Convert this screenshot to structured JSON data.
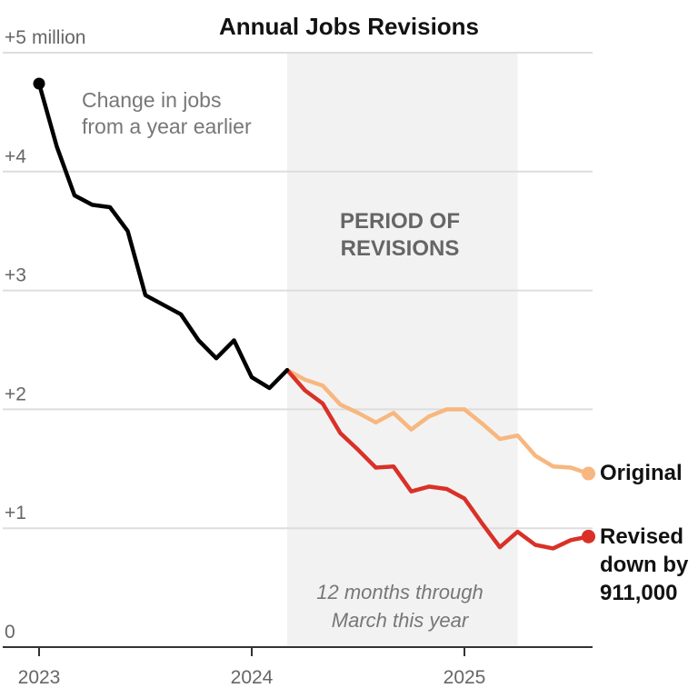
{
  "chart_data": {
    "type": "line",
    "title": "Annual Jobs Revisions",
    "unit_label": "million",
    "ylim": [
      0,
      5
    ],
    "yticks": [
      {
        "value": 0,
        "label": "0"
      },
      {
        "value": 1,
        "label": "+1"
      },
      {
        "value": 2,
        "label": "+2"
      },
      {
        "value": 3,
        "label": "+3"
      },
      {
        "value": 4,
        "label": "+4"
      },
      {
        "value": 5,
        "label": "+5"
      }
    ],
    "xlim": [
      2023.0,
      2025.6
    ],
    "xticks": [
      {
        "value": 2023,
        "label": "2023"
      },
      {
        "value": 2024,
        "label": "2024"
      },
      {
        "value": 2025,
        "label": "2025"
      }
    ],
    "annotation": [
      "Change in jobs",
      "from a year earlier"
    ],
    "shaded_period": {
      "start": 2024.1667,
      "end": 2025.25,
      "label": [
        "PERIOD OF",
        "REVISIONS"
      ],
      "note": [
        "12 months through",
        "March this year"
      ]
    },
    "colors": {
      "history": "#000000",
      "original": "#f7b77f",
      "revised": "#d93127",
      "shade": "#f2f2f2"
    },
    "series": [
      {
        "name": "history",
        "x": [
          2023.0,
          2023.0833,
          2023.1667,
          2023.25,
          2023.3333,
          2023.4167,
          2023.5,
          2023.5833,
          2023.6667,
          2023.75,
          2023.8333,
          2023.9167,
          2024.0,
          2024.0833,
          2024.1667
        ],
        "values": [
          4.74,
          4.21,
          3.8,
          3.72,
          3.7,
          3.5,
          2.96,
          2.88,
          2.8,
          2.58,
          2.43,
          2.58,
          2.27,
          2.18,
          2.33
        ]
      },
      {
        "name": "Original",
        "label": "Original",
        "x": [
          2024.1667,
          2024.25,
          2024.3333,
          2024.4167,
          2024.5,
          2024.5833,
          2024.6667,
          2024.75,
          2024.8333,
          2024.9167,
          2025.0,
          2025.0833,
          2025.1667,
          2025.25,
          2025.3333,
          2025.4167,
          2025.5,
          2025.5833
        ],
        "values": [
          2.33,
          2.25,
          2.2,
          2.04,
          1.97,
          1.89,
          1.97,
          1.83,
          1.94,
          2.0,
          2.0,
          1.88,
          1.75,
          1.78,
          1.61,
          1.52,
          1.51,
          1.46
        ]
      },
      {
        "name": "Revised",
        "label": [
          "Revised",
          "down by",
          "911,000"
        ],
        "x": [
          2024.1667,
          2024.25,
          2024.3333,
          2024.4167,
          2024.5,
          2024.5833,
          2024.6667,
          2024.75,
          2024.8333,
          2024.9167,
          2025.0,
          2025.0833,
          2025.1667,
          2025.25,
          2025.3333,
          2025.4167,
          2025.5,
          2025.5833
        ],
        "values": [
          2.33,
          2.16,
          2.05,
          1.8,
          1.66,
          1.51,
          1.52,
          1.31,
          1.35,
          1.33,
          1.25,
          1.04,
          0.84,
          0.97,
          0.86,
          0.83,
          0.9,
          0.93
        ]
      }
    ]
  }
}
